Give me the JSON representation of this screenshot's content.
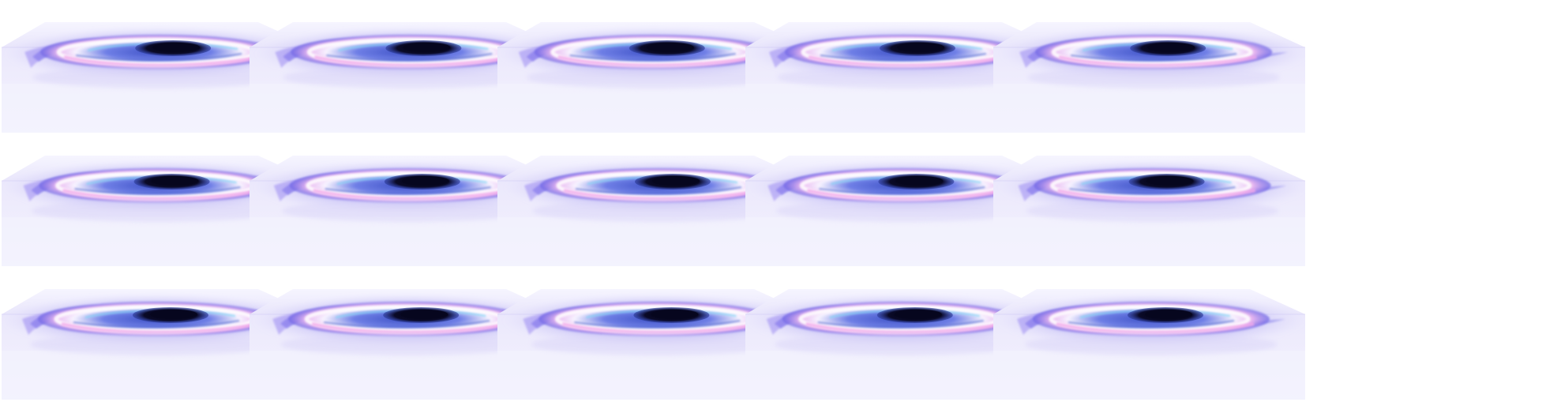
{
  "figure": {
    "rows": 3,
    "columns": 5,
    "panel_count": 15,
    "background_color": "#ffffff",
    "colors": {
      "box_tint": "#e8e6fb",
      "disk_outer": "#6b63e6",
      "disk_mid": "#8f7cf0",
      "disk_highlight": "#ffffff",
      "disk_pink": "#f2a8ea",
      "disk_cyan": "#7fd6f5",
      "disk_blue": "#3a55c8",
      "core": "#06061e"
    }
  }
}
